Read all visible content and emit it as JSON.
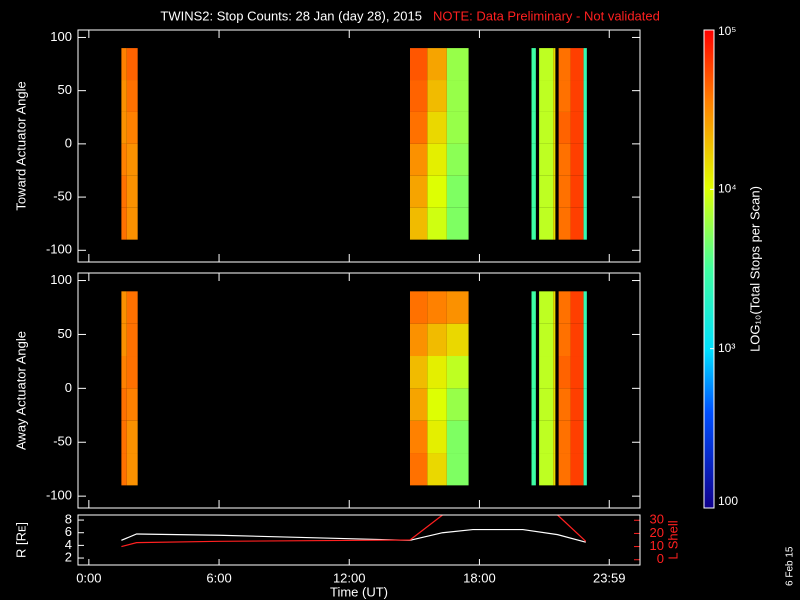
{
  "title": "TWINS2: Stop Counts: 28 Jan (day  28), 2015",
  "note": "NOTE: Data Preliminary - Not validated",
  "date_stamp": "6 Feb 15",
  "colorbar": {
    "label": "LOG₁₀(Total Stops per Scan)",
    "log": true,
    "lim": [
      100,
      100000
    ],
    "ticks": [
      {
        "value": 100000,
        "label": "10⁵"
      },
      {
        "value": 10000,
        "label": "10⁴"
      },
      {
        "value": 1000,
        "label": "10³"
      },
      100
    ]
  },
  "chart_data": [
    {
      "type": "heatmap",
      "ylabel": "Toward Actuator Angle",
      "xlim": [
        -0.5,
        25.4
      ],
      "ylim": [
        -111,
        107
      ],
      "yticks": [
        -100,
        -50,
        0,
        50,
        100
      ],
      "x": [
        1.5,
        1.75,
        2.25,
        14.8,
        15.6,
        16.5,
        17.5,
        20.4,
        20.6,
        20.75,
        21.4,
        21.5,
        21.65,
        22.2,
        22.8,
        22.95
      ],
      "y": [
        -90,
        -60,
        -30,
        0,
        30,
        60,
        90
      ],
      "values": [
        [
          40000,
          30000,
          null,
          20000,
          9000,
          5000,
          null,
          3000,
          null,
          8000,
          15000,
          null,
          40000,
          60000,
          2500
        ],
        [
          40000,
          30000,
          null,
          25000,
          10000,
          5000,
          null,
          3000,
          null,
          8000,
          15000,
          null,
          40000,
          60000,
          2500
        ],
        [
          35000,
          30000,
          null,
          30000,
          12000,
          5500,
          null,
          3000,
          null,
          8000,
          15000,
          null,
          40000,
          60000,
          2500
        ],
        [
          30000,
          35000,
          null,
          40000,
          15000,
          6000,
          null,
          3000,
          null,
          8000,
          15000,
          null,
          45000,
          60000,
          2500
        ],
        [
          30000,
          40000,
          null,
          45000,
          20000,
          6000,
          null,
          3000,
          null,
          8000,
          15000,
          null,
          40000,
          60000,
          2500
        ],
        [
          35000,
          45000,
          null,
          50000,
          25000,
          6000,
          null,
          3000,
          null,
          8000,
          15000,
          null,
          40000,
          60000,
          2500
        ]
      ]
    },
    {
      "type": "heatmap",
      "ylabel": "Away Actuator Angle",
      "xlim": [
        -0.5,
        25.4
      ],
      "ylim": [
        -111,
        107
      ],
      "yticks": [
        -100,
        -50,
        0,
        50,
        100
      ],
      "x": [
        1.5,
        1.75,
        2.25,
        14.8,
        15.6,
        16.5,
        17.5,
        20.4,
        20.6,
        20.75,
        21.4,
        21.5,
        21.65,
        22.2,
        22.8,
        22.95
      ],
      "y": [
        -90,
        -60,
        -30,
        0,
        30,
        60,
        90
      ],
      "values": [
        [
          40000,
          30000,
          null,
          40000,
          15000,
          5000,
          null,
          3000,
          null,
          8000,
          15000,
          null,
          40000,
          60000,
          2500
        ],
        [
          40000,
          30000,
          null,
          35000,
          12000,
          5000,
          null,
          3000,
          null,
          8000,
          15000,
          null,
          40000,
          60000,
          2500
        ],
        [
          40000,
          35000,
          null,
          25000,
          10000,
          6000,
          null,
          3000,
          null,
          8000,
          15000,
          null,
          40000,
          60000,
          2500
        ],
        [
          35000,
          40000,
          null,
          20000,
          12000,
          8000,
          null,
          3000,
          null,
          8000,
          15000,
          null,
          45000,
          60000,
          2500
        ],
        [
          30000,
          40000,
          null,
          30000,
          20000,
          15000,
          null,
          3000,
          null,
          8000,
          15000,
          null,
          40000,
          60000,
          2500
        ],
        [
          30000,
          40000,
          null,
          40000,
          35000,
          30000,
          null,
          3000,
          null,
          8000,
          15000,
          null,
          40000,
          60000,
          2500
        ]
      ]
    },
    {
      "type": "line",
      "xlabel": "Time (UT)",
      "ylabel": "R [Rᴇ]",
      "y2label": "L Shell",
      "xlim": [
        -0.5,
        25.4
      ],
      "xticks": [
        {
          "value": 0,
          "label": "0:00"
        },
        {
          "value": 6,
          "label": "6:00"
        },
        {
          "value": 12,
          "label": "12:00"
        },
        {
          "value": 18,
          "label": "18:00"
        },
        {
          "value": 23.983,
          "label": "23:59"
        }
      ],
      "ylim": [
        0.9,
        8.8
      ],
      "yticks": [
        2,
        4,
        6,
        8
      ],
      "y2lim": [
        -4,
        34
      ],
      "y2ticks": [
        0,
        10,
        20,
        30
      ],
      "x": [
        1.5,
        2.2,
        6,
        14.8,
        16.3,
        17.7,
        20,
        21.6,
        22.9
      ],
      "series": [
        {
          "name": "R",
          "color": "#ffffff",
          "values": [
            4.8,
            5.8,
            5.6,
            4.8,
            6.0,
            6.5,
            6.5,
            5.7,
            4.5
          ]
        },
        {
          "name": "L Shell",
          "color": "#ff2020",
          "axis": "y2",
          "values": [
            10,
            13,
            14,
            15,
            34,
            null,
            null,
            34,
            14
          ]
        }
      ]
    }
  ]
}
